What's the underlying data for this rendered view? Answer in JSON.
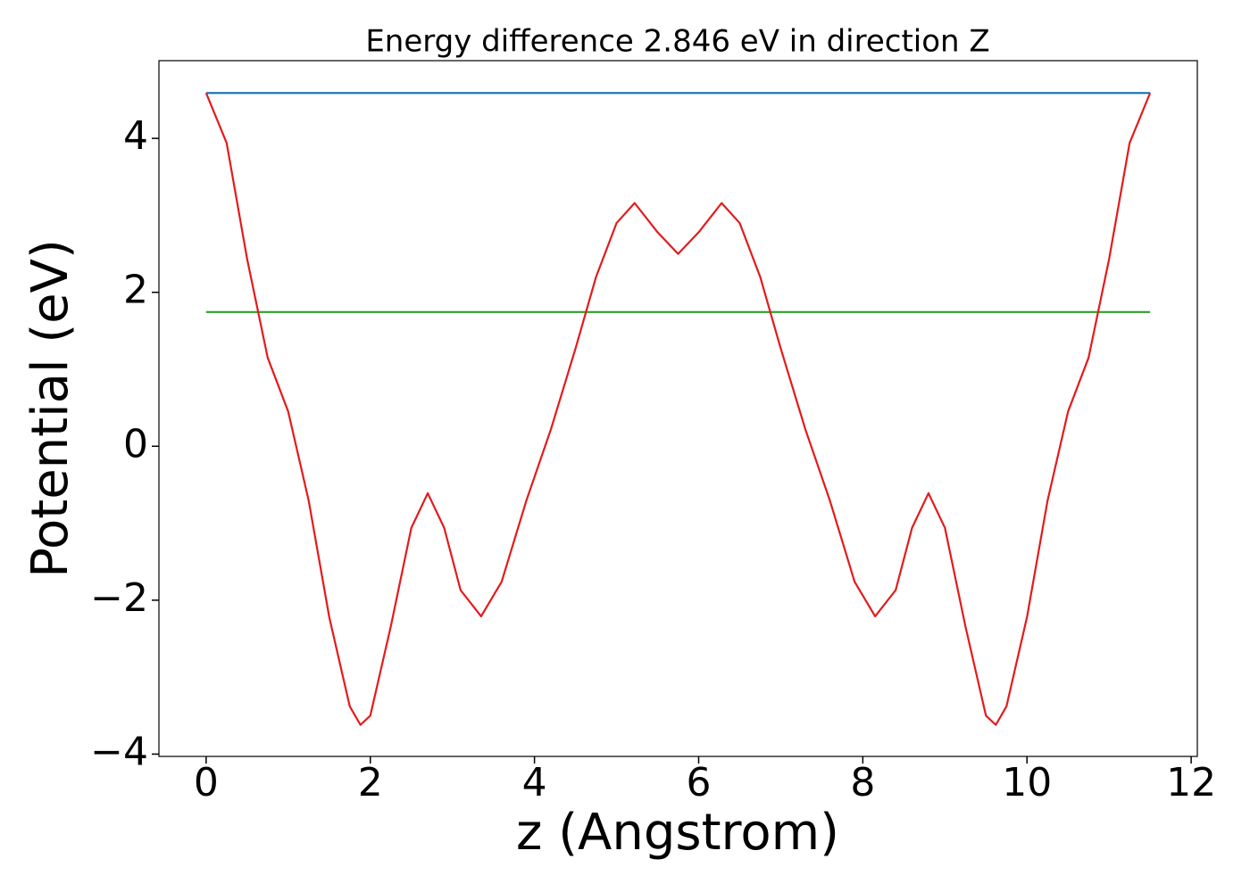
{
  "chart_data": {
    "type": "line",
    "title": "Energy difference 2.846 eV in direction Z",
    "x_label": "z (Angstrom)",
    "y_label": "Potential (eV)",
    "xlim": [
      -0.575,
      12.075
    ],
    "ylim": [
      -4.03,
      5.01
    ],
    "xticks": [
      0,
      2,
      4,
      6,
      8,
      10,
      12
    ],
    "yticks": [
      {
        "value": -4,
        "label": "−4"
      },
      {
        "value": -2,
        "label": "−2"
      },
      0,
      2,
      4
    ],
    "series": [
      {
        "color": "#1f77b4",
        "x": [
          0,
          11.5
        ],
        "values": [
          4.59,
          4.59
        ]
      },
      {
        "color": "#2ca02c",
        "x": [
          0,
          11.5
        ],
        "values": [
          1.744,
          1.744
        ]
      },
      {
        "color": "#e41a1c",
        "x": [
          0,
          0.25,
          0.5,
          0.75,
          1,
          1.25,
          1.5,
          1.75,
          1.88,
          2,
          2.25,
          2.5,
          2.7,
          2.9,
          3.1,
          3.35,
          3.6,
          3.9,
          4.2,
          4.5,
          4.75,
          5,
          5.22,
          5.5,
          5.75,
          6,
          6.28,
          6.5,
          6.75,
          7,
          7.3,
          7.6,
          7.9,
          8.15,
          8.4,
          8.6,
          8.8,
          9,
          9.25,
          9.5,
          9.62,
          9.75,
          10,
          10.25,
          10.5,
          10.75,
          11,
          11.25,
          11.5
        ],
        "values": [
          4.59,
          3.94,
          2.43,
          1.15,
          0.45,
          -0.71,
          -2.22,
          -3.38,
          -3.62,
          -3.5,
          -2.34,
          -1.06,
          -0.61,
          -1.06,
          -1.87,
          -2.21,
          -1.76,
          -0.71,
          0.22,
          1.27,
          2.2,
          2.9,
          3.16,
          2.78,
          2.5,
          2.78,
          3.16,
          2.9,
          2.2,
          1.27,
          0.22,
          -0.71,
          -1.76,
          -2.21,
          -1.87,
          -1.06,
          -0.61,
          -1.06,
          -2.34,
          -3.5,
          -3.62,
          -3.38,
          -2.22,
          -0.71,
          0.45,
          1.15,
          2.43,
          3.94,
          4.59
        ]
      }
    ]
  }
}
